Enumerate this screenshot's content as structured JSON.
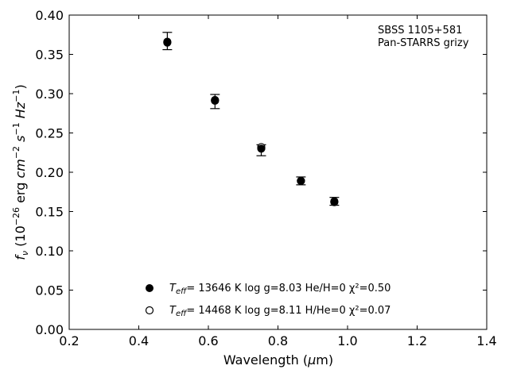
{
  "chart_data": {
    "type": "scatter",
    "title": "",
    "xlabel": "Wavelength (μm)",
    "ylabel": "f_ν (10^-26 erg cm^-2 s^-1 Hz^-1)",
    "xlim": [
      0.2,
      1.4
    ],
    "ylim": [
      0.0,
      0.4
    ],
    "x_ticks": [
      "0.2",
      "0.4",
      "0.6",
      "0.8",
      "1.0",
      "1.2",
      "1.4"
    ],
    "y_ticks": [
      "0.00",
      "0.05",
      "0.10",
      "0.15",
      "0.20",
      "0.25",
      "0.30",
      "0.35",
      "0.40"
    ],
    "grid": false,
    "annotation": {
      "line1": "SBSS 1105+581",
      "line2": "Pan-STARRS grizy"
    },
    "legend": {
      "placement": "bottom-center",
      "entries": [
        {
          "marker": "filled",
          "text_rest": "= 13646 K  log g=8.03  He/H=0  χ²=0.50"
        },
        {
          "marker": "open",
          "text_rest": "= 14468 K  log g=8.11  H/He=0  χ²=0.07"
        }
      ]
    },
    "series": [
      {
        "marker": "open",
        "color": "#000000",
        "x": [
          0.482,
          0.619,
          0.752,
          0.866,
          0.962
        ],
        "y": [
          0.366,
          0.292,
          0.232,
          0.189,
          0.163
        ]
      },
      {
        "marker": "filled",
        "color": "#000000",
        "x": [
          0.482,
          0.619,
          0.752,
          0.866,
          0.962
        ],
        "y": [
          0.365,
          0.291,
          0.23,
          0.189,
          0.162
        ]
      }
    ],
    "observed": {
      "x": [
        0.482,
        0.619,
        0.752,
        0.866,
        0.962
      ],
      "y": [
        0.367,
        0.29,
        0.228,
        0.189,
        0.163
      ],
      "yerr": [
        0.011,
        0.009,
        0.007,
        0.005,
        0.005
      ]
    }
  }
}
